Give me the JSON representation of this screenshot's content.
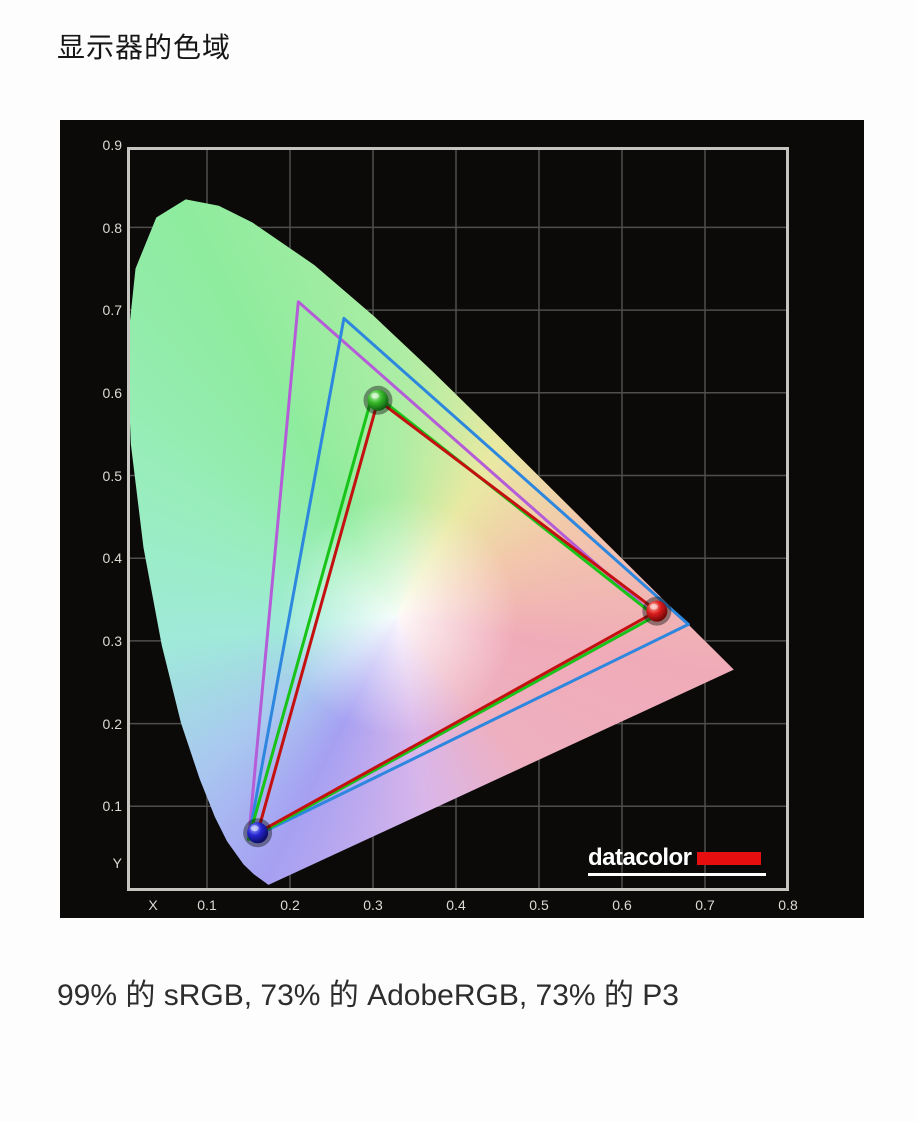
{
  "page": {
    "title": "显示器的色域",
    "caption": "99% 的 sRGB, 73% 的 AdobeRGB, 73% 的 P3"
  },
  "branding": {
    "logo_text": "datacolor",
    "logo_bar_color": "#e60e0e",
    "logo_text_color": "#ffffff"
  },
  "chart_data": {
    "type": "scatter",
    "subtype": "cie-1931-chromaticity-gamut",
    "title": "CIE 1931 xy chromaticity diagram with display gamut vs reference gamuts",
    "xlabel": "X",
    "ylabel": "Y",
    "xlim": [
      0,
      0.8
    ],
    "ylim": [
      0,
      0.9
    ],
    "grid": true,
    "panel_background": "#0b0a09",
    "grid_color": "#4e4e4c",
    "frame_color": "#c6c5c0",
    "x_ticks": [
      "0.1",
      "0.2",
      "0.3",
      "0.4",
      "0.5",
      "0.6",
      "0.7",
      "0.8"
    ],
    "y_ticks": [
      "0.9",
      "0.8",
      "0.7",
      "0.6",
      "0.5",
      "0.4",
      "0.3",
      "0.2",
      "0.1"
    ],
    "gamut_coverage": {
      "sRGB": "99%",
      "AdobeRGB": "73%",
      "P3": "73%"
    },
    "series": [
      {
        "name": "AdobeRGB reference gamut",
        "color": "#b55cd8",
        "points": [
          [
            0.64,
            0.33
          ],
          [
            0.21,
            0.71
          ],
          [
            0.15,
            0.06
          ]
        ]
      },
      {
        "name": "P3 reference gamut",
        "color": "#2e87de",
        "points": [
          [
            0.68,
            0.32
          ],
          [
            0.265,
            0.69
          ],
          [
            0.15,
            0.06
          ]
        ]
      },
      {
        "name": "sRGB reference gamut",
        "color": "#17c417",
        "points": [
          [
            0.64,
            0.33
          ],
          [
            0.3,
            0.6
          ],
          [
            0.15,
            0.06
          ]
        ]
      },
      {
        "name": "measured display gamut",
        "color": "#c41010",
        "points": [
          [
            0.642,
            0.336
          ],
          [
            0.306,
            0.591
          ],
          [
            0.161,
            0.068
          ]
        ],
        "markers": [
          "red",
          "green",
          "blue"
        ]
      }
    ],
    "spectral_locus": [
      [
        0.1741,
        0.005
      ],
      [
        0.1566,
        0.0177
      ],
      [
        0.144,
        0.0297
      ],
      [
        0.1241,
        0.0578
      ],
      [
        0.1096,
        0.0868
      ],
      [
        0.0913,
        0.1327
      ],
      [
        0.0687,
        0.2007
      ],
      [
        0.0454,
        0.295
      ],
      [
        0.0235,
        0.4127
      ],
      [
        0.0082,
        0.5384
      ],
      [
        0.0039,
        0.6548
      ],
      [
        0.0139,
        0.7502
      ],
      [
        0.0389,
        0.812
      ],
      [
        0.0743,
        0.8338
      ],
      [
        0.1142,
        0.8262
      ],
      [
        0.1547,
        0.8059
      ],
      [
        0.2296,
        0.7543
      ],
      [
        0.3016,
        0.6923
      ],
      [
        0.3731,
        0.6245
      ],
      [
        0.4441,
        0.5547
      ],
      [
        0.5125,
        0.4866
      ],
      [
        0.5752,
        0.4242
      ],
      [
        0.627,
        0.3725
      ],
      [
        0.6658,
        0.334
      ],
      [
        0.6915,
        0.3083
      ],
      [
        0.7079,
        0.292
      ],
      [
        0.7347,
        0.2653
      ]
    ]
  }
}
